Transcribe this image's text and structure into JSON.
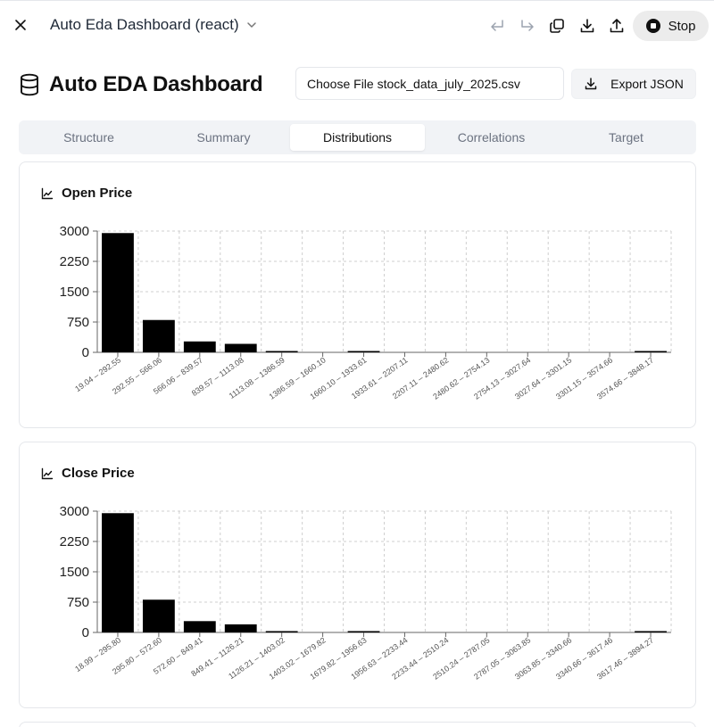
{
  "window": {
    "title": "Auto Eda Dashboard (react)",
    "icons": [
      "close-icon",
      "chevron-down-icon",
      "undo-icon",
      "redo-icon",
      "copy-icon",
      "download-icon",
      "share-icon",
      "stop-icon"
    ],
    "stop_label": "Stop"
  },
  "header": {
    "title": "Auto EDA Dashboard",
    "icon": "database-icon",
    "file_input_label": "Choose File stock_data_july_2025.csv",
    "export_label": "Export JSON"
  },
  "tabs": [
    {
      "label": "Structure",
      "active": false
    },
    {
      "label": "Summary",
      "active": false
    },
    {
      "label": "Distributions",
      "active": true
    },
    {
      "label": "Correlations",
      "active": false
    },
    {
      "label": "Target",
      "active": false
    }
  ],
  "cards": [
    {
      "title": "Open Price",
      "icon": "line-chart-icon"
    },
    {
      "title": "Close Price",
      "icon": "line-chart-icon"
    }
  ],
  "chart_data": [
    {
      "type": "bar",
      "title": "Open Price",
      "categories": [
        "19.04 – 292.55",
        "292.55 – 566.06",
        "566.06 – 839.57",
        "839.57 – 1113.08",
        "1113.08 – 1386.59",
        "1386.59 – 1660.10",
        "1660.10 – 1933.61",
        "1933.61 – 2207.11",
        "2207.11 – 2480.62",
        "2480.62 – 2754.13",
        "2754.13 – 3027.64",
        "3027.64 – 3301.15",
        "3301.15 – 3574.66",
        "3574.66 – 3848.17"
      ],
      "values": [
        2950,
        800,
        270,
        210,
        5,
        0,
        25,
        0,
        0,
        0,
        0,
        0,
        0,
        30
      ],
      "yticks": [
        0,
        750,
        1500,
        2250,
        3000
      ],
      "ylim": [
        0,
        3000
      ],
      "grid": true,
      "bar_color": "#000000"
    },
    {
      "type": "bar",
      "title": "Close Price",
      "categories": [
        "18.99 – 295.80",
        "295.80 – 572.60",
        "572.60 – 849.41",
        "849.41 – 1126.21",
        "1126.21 – 1403.02",
        "1403.02 – 1679.82",
        "1679.82 – 1956.63",
        "1956.63 – 2233.44",
        "2233.44 – 2510.24",
        "2510.24 – 2787.05",
        "2787.05 – 3063.85",
        "3063.85 – 3340.66",
        "3340.66 – 3617.46",
        "3617.46 – 3894.27"
      ],
      "values": [
        2950,
        810,
        280,
        200,
        4,
        0,
        25,
        0,
        0,
        0,
        0,
        0,
        0,
        30
      ],
      "yticks": [
        0,
        750,
        1500,
        2250,
        3000
      ],
      "ylim": [
        0,
        3000
      ],
      "grid": true,
      "bar_color": "#000000"
    }
  ]
}
